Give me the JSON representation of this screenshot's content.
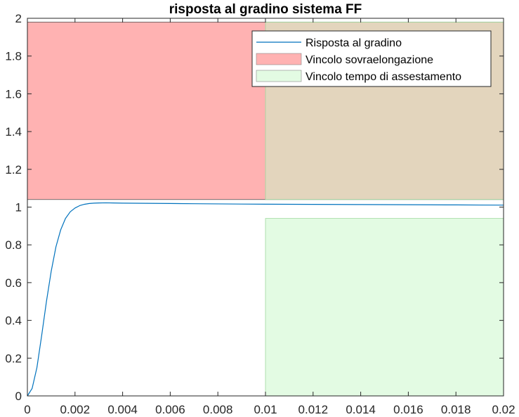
{
  "chart_data": {
    "type": "line",
    "title": "risposta al gradino sistema FF",
    "xlabel": "",
    "ylabel": "",
    "xlim": [
      0,
      0.02
    ],
    "ylim": [
      0,
      2
    ],
    "x_ticks": [
      "0",
      "0.002",
      "0.004",
      "0.006",
      "0.008",
      "0.01",
      "0.012",
      "0.014",
      "0.016",
      "0.018",
      "0.02"
    ],
    "y_ticks": [
      "0",
      "0.2",
      "0.4",
      "0.6",
      "0.8",
      "1",
      "1.2",
      "1.4",
      "1.6",
      "1.8",
      "2"
    ],
    "grid": false,
    "legend_position": "top-right",
    "series": [
      {
        "name": "Risposta al gradino",
        "kind": "line",
        "color": "#0072BD",
        "x": [
          0,
          0.0002,
          0.0004,
          0.0006,
          0.0008,
          0.001,
          0.0012,
          0.0014,
          0.0016,
          0.0018,
          0.002,
          0.0022,
          0.0024,
          0.0026,
          0.0028,
          0.003,
          0.0033,
          0.0036,
          0.004,
          0.0045,
          0.005,
          0.006,
          0.007,
          0.008,
          0.009,
          0.01,
          0.011,
          0.012,
          0.013,
          0.014,
          0.015,
          0.016,
          0.017,
          0.018,
          0.019,
          0.02
        ],
        "y": [
          0,
          0.04,
          0.15,
          0.32,
          0.5,
          0.66,
          0.79,
          0.88,
          0.94,
          0.975,
          0.995,
          1.008,
          1.015,
          1.019,
          1.021,
          1.022,
          1.0225,
          1.022,
          1.021,
          1.0205,
          1.02,
          1.019,
          1.018,
          1.017,
          1.016,
          1.0155,
          1.015,
          1.0145,
          1.014,
          1.0135,
          1.013,
          1.0125,
          1.012,
          1.0115,
          1.011,
          1.0105
        ]
      },
      {
        "name": "Vincolo sovraelongazione",
        "kind": "area",
        "color": "#FF7F7F",
        "opacity": 0.6,
        "x_range": [
          0,
          0.02
        ],
        "y_range": [
          1.04,
          1.98
        ]
      },
      {
        "name": "Vincolo tempo di assestamento",
        "kind": "area",
        "color": "#C8F7C8",
        "opacity": 0.5,
        "x_range": [
          0.01,
          0.02
        ],
        "y_ranges": [
          [
            0,
            0.94
          ],
          [
            1.04,
            1.98
          ]
        ]
      }
    ]
  }
}
